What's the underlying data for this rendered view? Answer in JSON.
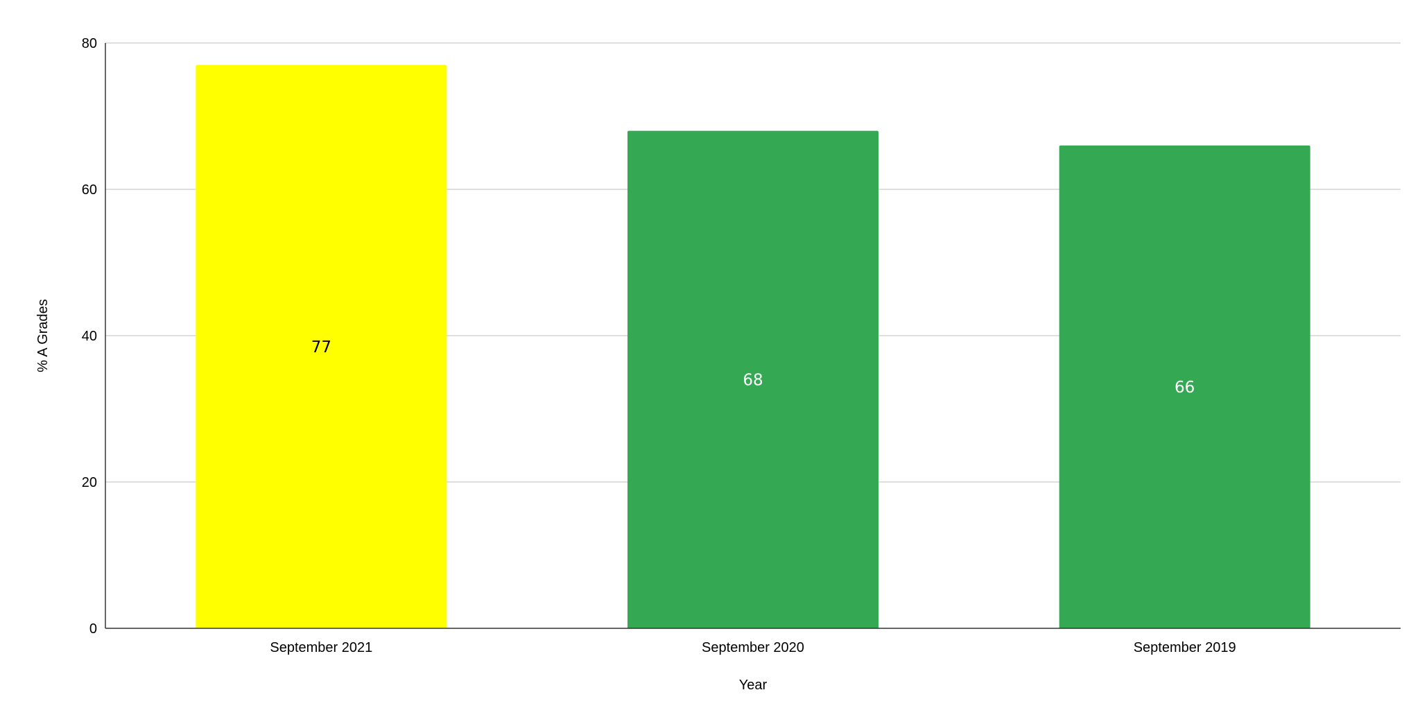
{
  "chart_data": {
    "type": "bar",
    "categories": [
      "September 2021",
      "September 2020",
      "September 2019"
    ],
    "values": [
      77,
      68,
      66
    ],
    "bar_colors": [
      "#FFFF00",
      "#34A853",
      "#34A853"
    ],
    "data_label_colors": [
      "#000000",
      "#FFFFFF",
      "#FFFFFF"
    ],
    "title": "",
    "xlabel": "Year",
    "ylabel": "% A Grades",
    "ylim": [
      0,
      80
    ],
    "yticks": [
      0,
      20,
      40,
      60,
      80
    ],
    "grid": true,
    "legend": "none",
    "gridline_color": "#CCCCCC",
    "axis_color": "#333333"
  }
}
